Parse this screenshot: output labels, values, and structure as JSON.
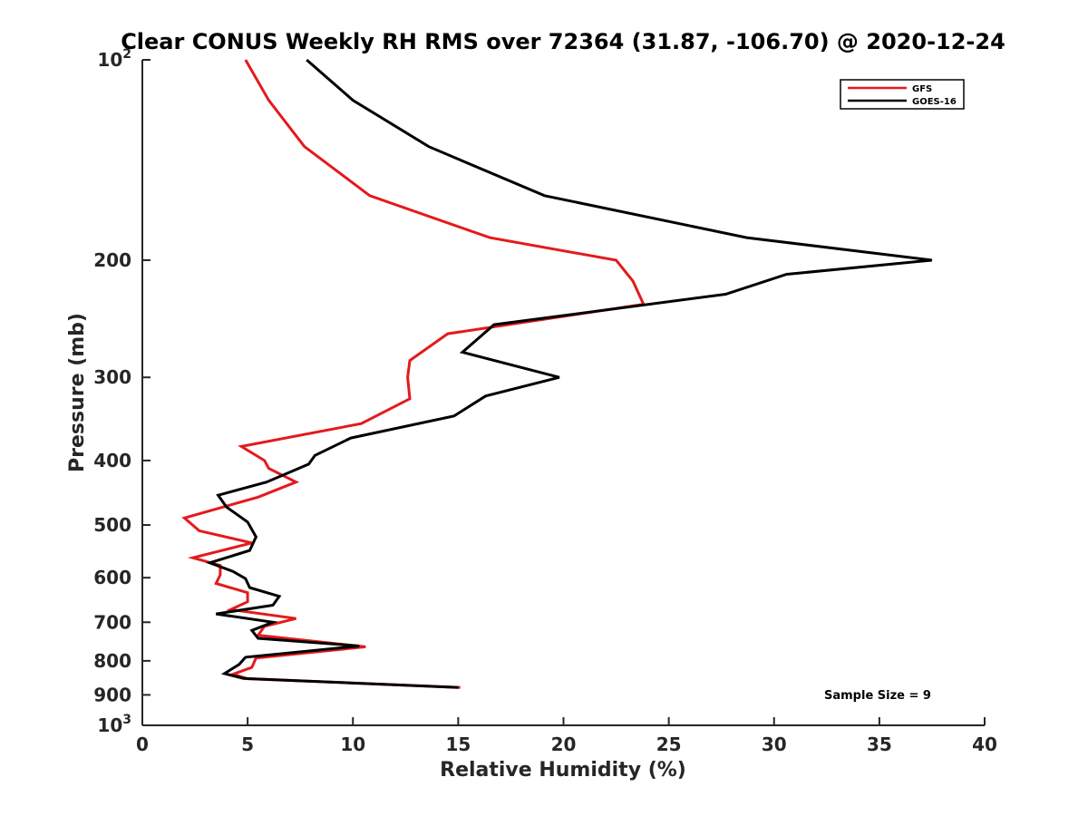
{
  "chart_data": {
    "type": "line",
    "title": "Clear CONUS Weekly RH RMS over 72364 (31.87, -106.70) @ 2020-12-24",
    "xlabel": "Relative Humidity (%)",
    "ylabel": "Pressure (mb)",
    "xlim": [
      0,
      40
    ],
    "ylim": [
      100,
      1000
    ],
    "y_scale": "log",
    "y_reversed": true,
    "x_ticks": [
      "0",
      "5",
      "10",
      "15",
      "20",
      "25",
      "30",
      "35",
      "40"
    ],
    "y_ticks": [
      {
        "value": 100,
        "base": "10",
        "exp": "2"
      },
      {
        "value": 200,
        "label": "200"
      },
      {
        "value": 300,
        "label": "300"
      },
      {
        "value": 400,
        "label": "400"
      },
      {
        "value": 500,
        "label": "500"
      },
      {
        "value": 600,
        "label": "600"
      },
      {
        "value": 700,
        "label": "700"
      },
      {
        "value": 800,
        "label": "800"
      },
      {
        "value": 900,
        "label": "900"
      },
      {
        "value": 1000,
        "base": "10",
        "exp": "3"
      }
    ],
    "legend_position": "top-right",
    "annotation": "Sample Size = 9",
    "series": [
      {
        "name": "GFS",
        "color": "#e31a1c",
        "points": [
          [
            4.9,
            100
          ],
          [
            6.0,
            115
          ],
          [
            7.7,
            135
          ],
          [
            10.8,
            160
          ],
          [
            16.5,
            185
          ],
          [
            22.5,
            200
          ],
          [
            23.3,
            215
          ],
          [
            23.8,
            233
          ],
          [
            14.5,
            258
          ],
          [
            12.7,
            283
          ],
          [
            12.6,
            300
          ],
          [
            12.7,
            323
          ],
          [
            10.4,
            352
          ],
          [
            4.7,
            381
          ],
          [
            5.8,
            400
          ],
          [
            6.0,
            411
          ],
          [
            7.3,
            431
          ],
          [
            5.5,
            454
          ],
          [
            2.0,
            488
          ],
          [
            2.7,
            510
          ],
          [
            5.2,
            532
          ],
          [
            2.4,
            560
          ],
          [
            3.7,
            575
          ],
          [
            3.7,
            594
          ],
          [
            3.5,
            612
          ],
          [
            5.0,
            632
          ],
          [
            5.0,
            652
          ],
          [
            4.2,
            670
          ],
          [
            7.3,
            691
          ],
          [
            5.8,
            710
          ],
          [
            5.5,
            732
          ],
          [
            10.6,
            762
          ],
          [
            5.4,
            792
          ],
          [
            5.2,
            818
          ],
          [
            4.3,
            838
          ],
          [
            5.0,
            851
          ],
          [
            15.1,
            877
          ]
        ]
      },
      {
        "name": "GOES-16",
        "color": "#000000",
        "points": [
          [
            7.8,
            100
          ],
          [
            10.0,
            115
          ],
          [
            13.6,
            135
          ],
          [
            19.1,
            160
          ],
          [
            28.7,
            185
          ],
          [
            37.5,
            200
          ],
          [
            30.6,
            210
          ],
          [
            27.7,
            225
          ],
          [
            16.7,
            250
          ],
          [
            15.2,
            275
          ],
          [
            19.8,
            300
          ],
          [
            16.3,
            320
          ],
          [
            14.8,
            343
          ],
          [
            9.9,
            370
          ],
          [
            8.2,
            393
          ],
          [
            7.9,
            405
          ],
          [
            5.9,
            431
          ],
          [
            3.6,
            451
          ],
          [
            4.0,
            470
          ],
          [
            5.0,
            495
          ],
          [
            5.4,
            521
          ],
          [
            5.1,
            546
          ],
          [
            3.2,
            570
          ],
          [
            4.3,
            587
          ],
          [
            4.9,
            602
          ],
          [
            5.1,
            621
          ],
          [
            6.5,
            640
          ],
          [
            6.2,
            660
          ],
          [
            3.5,
            680
          ],
          [
            6.2,
            700
          ],
          [
            5.2,
            720
          ],
          [
            5.5,
            740
          ],
          [
            10.3,
            760
          ],
          [
            4.9,
            790
          ],
          [
            4.6,
            810
          ],
          [
            3.9,
            836
          ],
          [
            4.8,
            850
          ],
          [
            15.0,
            877
          ]
        ]
      }
    ]
  }
}
